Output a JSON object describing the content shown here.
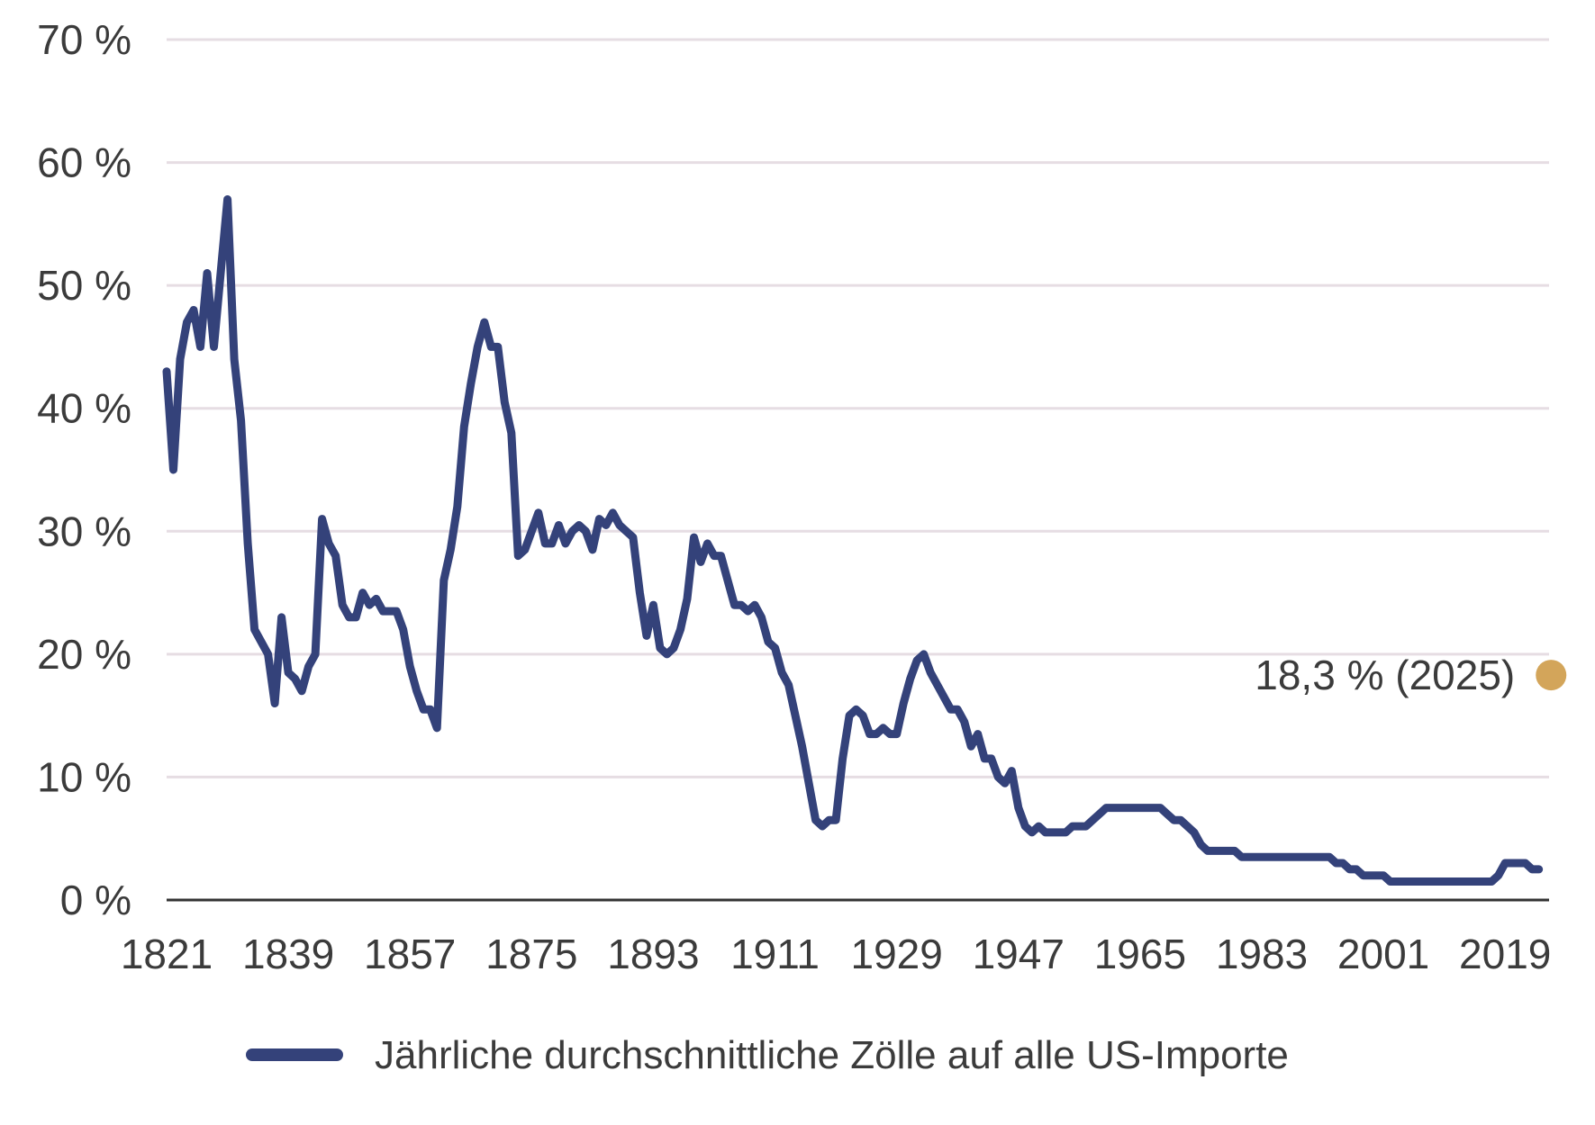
{
  "chart_data": {
    "type": "line",
    "title": "",
    "xlabel": "",
    "ylabel": "",
    "xlim": [
      1821,
      2024
    ],
    "ylim": [
      0,
      70
    ],
    "grid": true,
    "legend_position": "bottom-center",
    "x_tick_labels": [
      "1821",
      "1839",
      "1857",
      "1875",
      "1893",
      "1911",
      "1929",
      "1947",
      "1965",
      "1983",
      "2001",
      "2019"
    ],
    "y_tick_labels": [
      "0 %",
      "10 %",
      "20 %",
      "30 %",
      "40 %",
      "50 %",
      "60 %",
      "70 %"
    ],
    "colors": {
      "series": "#34427a",
      "annotation_point": "#d3a55a",
      "grid": "#e6dde3",
      "axis": "#333333"
    },
    "series": [
      {
        "name": "Jährliche durchschnittliche Zölle auf alle US-Importe",
        "points": [
          [
            1821,
            43.0
          ],
          [
            1822,
            35.0
          ],
          [
            1823,
            44.0
          ],
          [
            1824,
            47.0
          ],
          [
            1825,
            48.0
          ],
          [
            1826,
            45.0
          ],
          [
            1827,
            51.0
          ],
          [
            1828,
            45.0
          ],
          [
            1829,
            51.0
          ],
          [
            1830,
            57.0
          ],
          [
            1831,
            44.0
          ],
          [
            1832,
            39.0
          ],
          [
            1833,
            29.0
          ],
          [
            1834,
            22.0
          ],
          [
            1835,
            21.0
          ],
          [
            1836,
            20.0
          ],
          [
            1837,
            16.0
          ],
          [
            1838,
            23.0
          ],
          [
            1839,
            18.5
          ],
          [
            1840,
            18.0
          ],
          [
            1841,
            17.0
          ],
          [
            1842,
            19.0
          ],
          [
            1843,
            20.0
          ],
          [
            1844,
            31.0
          ],
          [
            1845,
            29.0
          ],
          [
            1846,
            28.0
          ],
          [
            1847,
            24.0
          ],
          [
            1848,
            23.0
          ],
          [
            1849,
            23.0
          ],
          [
            1850,
            25.0
          ],
          [
            1851,
            24.0
          ],
          [
            1852,
            24.5
          ],
          [
            1853,
            23.5
          ],
          [
            1854,
            23.5
          ],
          [
            1855,
            23.5
          ],
          [
            1856,
            22.0
          ],
          [
            1857,
            19.0
          ],
          [
            1858,
            17.0
          ],
          [
            1859,
            15.5
          ],
          [
            1860,
            15.5
          ],
          [
            1861,
            14.0
          ],
          [
            1862,
            26.0
          ],
          [
            1863,
            28.5
          ],
          [
            1864,
            32.0
          ],
          [
            1865,
            38.5
          ],
          [
            1866,
            42.0
          ],
          [
            1867,
            45.0
          ],
          [
            1868,
            47.0
          ],
          [
            1869,
            45.0
          ],
          [
            1870,
            45.0
          ],
          [
            1871,
            40.5
          ],
          [
            1872,
            38.0
          ],
          [
            1873,
            28.0
          ],
          [
            1874,
            28.5
          ],
          [
            1875,
            30.0
          ],
          [
            1876,
            31.5
          ],
          [
            1877,
            29.0
          ],
          [
            1878,
            29.0
          ],
          [
            1879,
            30.5
          ],
          [
            1880,
            29.0
          ],
          [
            1881,
            30.0
          ],
          [
            1882,
            30.5
          ],
          [
            1883,
            30.0
          ],
          [
            1884,
            28.5
          ],
          [
            1885,
            31.0
          ],
          [
            1886,
            30.5
          ],
          [
            1887,
            31.5
          ],
          [
            1888,
            30.5
          ],
          [
            1889,
            30.0
          ],
          [
            1890,
            29.5
          ],
          [
            1891,
            25.0
          ],
          [
            1892,
            21.5
          ],
          [
            1893,
            24.0
          ],
          [
            1894,
            20.5
          ],
          [
            1895,
            20.0
          ],
          [
            1896,
            20.5
          ],
          [
            1897,
            22.0
          ],
          [
            1898,
            24.5
          ],
          [
            1899,
            29.5
          ],
          [
            1900,
            27.5
          ],
          [
            1901,
            29.0
          ],
          [
            1902,
            28.0
          ],
          [
            1903,
            28.0
          ],
          [
            1904,
            26.0
          ],
          [
            1905,
            24.0
          ],
          [
            1906,
            24.0
          ],
          [
            1907,
            23.5
          ],
          [
            1908,
            24.0
          ],
          [
            1909,
            23.0
          ],
          [
            1910,
            21.0
          ],
          [
            1911,
            20.5
          ],
          [
            1912,
            18.5
          ],
          [
            1913,
            17.5
          ],
          [
            1914,
            15.0
          ],
          [
            1915,
            12.5
          ],
          [
            1916,
            9.5
          ],
          [
            1917,
            6.5
          ],
          [
            1918,
            6.0
          ],
          [
            1919,
            6.5
          ],
          [
            1920,
            6.5
          ],
          [
            1921,
            11.5
          ],
          [
            1922,
            15.0
          ],
          [
            1923,
            15.5
          ],
          [
            1924,
            15.0
          ],
          [
            1925,
            13.5
          ],
          [
            1926,
            13.5
          ],
          [
            1927,
            14.0
          ],
          [
            1928,
            13.5
          ],
          [
            1929,
            13.5
          ],
          [
            1930,
            16.0
          ],
          [
            1931,
            18.0
          ],
          [
            1932,
            19.5
          ],
          [
            1933,
            20.0
          ],
          [
            1934,
            18.5
          ],
          [
            1935,
            17.5
          ],
          [
            1936,
            16.5
          ],
          [
            1937,
            15.5
          ],
          [
            1938,
            15.5
          ],
          [
            1939,
            14.5
          ],
          [
            1940,
            12.5
          ],
          [
            1941,
            13.5
          ],
          [
            1942,
            11.5
          ],
          [
            1943,
            11.5
          ],
          [
            1944,
            10.0
          ],
          [
            1945,
            9.5
          ],
          [
            1946,
            10.5
          ],
          [
            1947,
            7.5
          ],
          [
            1948,
            6.0
          ],
          [
            1949,
            5.5
          ],
          [
            1950,
            6.0
          ],
          [
            1951,
            5.5
          ],
          [
            1952,
            5.5
          ],
          [
            1953,
            5.5
          ],
          [
            1954,
            5.5
          ],
          [
            1955,
            6.0
          ],
          [
            1956,
            6.0
          ],
          [
            1957,
            6.0
          ],
          [
            1958,
            6.5
          ],
          [
            1959,
            7.0
          ],
          [
            1960,
            7.5
          ],
          [
            1961,
            7.5
          ],
          [
            1962,
            7.5
          ],
          [
            1963,
            7.5
          ],
          [
            1964,
            7.5
          ],
          [
            1965,
            7.5
          ],
          [
            1966,
            7.5
          ],
          [
            1967,
            7.5
          ],
          [
            1968,
            7.5
          ],
          [
            1969,
            7.0
          ],
          [
            1970,
            6.5
          ],
          [
            1971,
            6.5
          ],
          [
            1972,
            6.0
          ],
          [
            1973,
            5.5
          ],
          [
            1974,
            4.5
          ],
          [
            1975,
            4.0
          ],
          [
            1976,
            4.0
          ],
          [
            1977,
            4.0
          ],
          [
            1978,
            4.0
          ],
          [
            1979,
            4.0
          ],
          [
            1980,
            3.5
          ],
          [
            1981,
            3.5
          ],
          [
            1982,
            3.5
          ],
          [
            1983,
            3.5
          ],
          [
            1984,
            3.5
          ],
          [
            1985,
            3.5
          ],
          [
            1986,
            3.5
          ],
          [
            1987,
            3.5
          ],
          [
            1988,
            3.5
          ],
          [
            1989,
            3.5
          ],
          [
            1990,
            3.5
          ],
          [
            1991,
            3.5
          ],
          [
            1992,
            3.5
          ],
          [
            1993,
            3.5
          ],
          [
            1994,
            3.0
          ],
          [
            1995,
            3.0
          ],
          [
            1996,
            2.5
          ],
          [
            1997,
            2.5
          ],
          [
            1998,
            2.0
          ],
          [
            1999,
            2.0
          ],
          [
            2000,
            2.0
          ],
          [
            2001,
            2.0
          ],
          [
            2002,
            1.5
          ],
          [
            2003,
            1.5
          ],
          [
            2004,
            1.5
          ],
          [
            2005,
            1.5
          ],
          [
            2006,
            1.5
          ],
          [
            2007,
            1.5
          ],
          [
            2008,
            1.5
          ],
          [
            2009,
            1.5
          ],
          [
            2010,
            1.5
          ],
          [
            2011,
            1.5
          ],
          [
            2012,
            1.5
          ],
          [
            2013,
            1.5
          ],
          [
            2014,
            1.5
          ],
          [
            2015,
            1.5
          ],
          [
            2016,
            1.5
          ],
          [
            2017,
            1.5
          ],
          [
            2018,
            2.0
          ],
          [
            2019,
            3.0
          ],
          [
            2020,
            3.0
          ],
          [
            2021,
            3.0
          ],
          [
            2022,
            3.0
          ],
          [
            2023,
            2.5
          ],
          [
            2024,
            2.5
          ]
        ]
      }
    ],
    "annotations": [
      {
        "x": 2025,
        "y": 18.3,
        "label": "18,3 % (2025)"
      }
    ]
  }
}
